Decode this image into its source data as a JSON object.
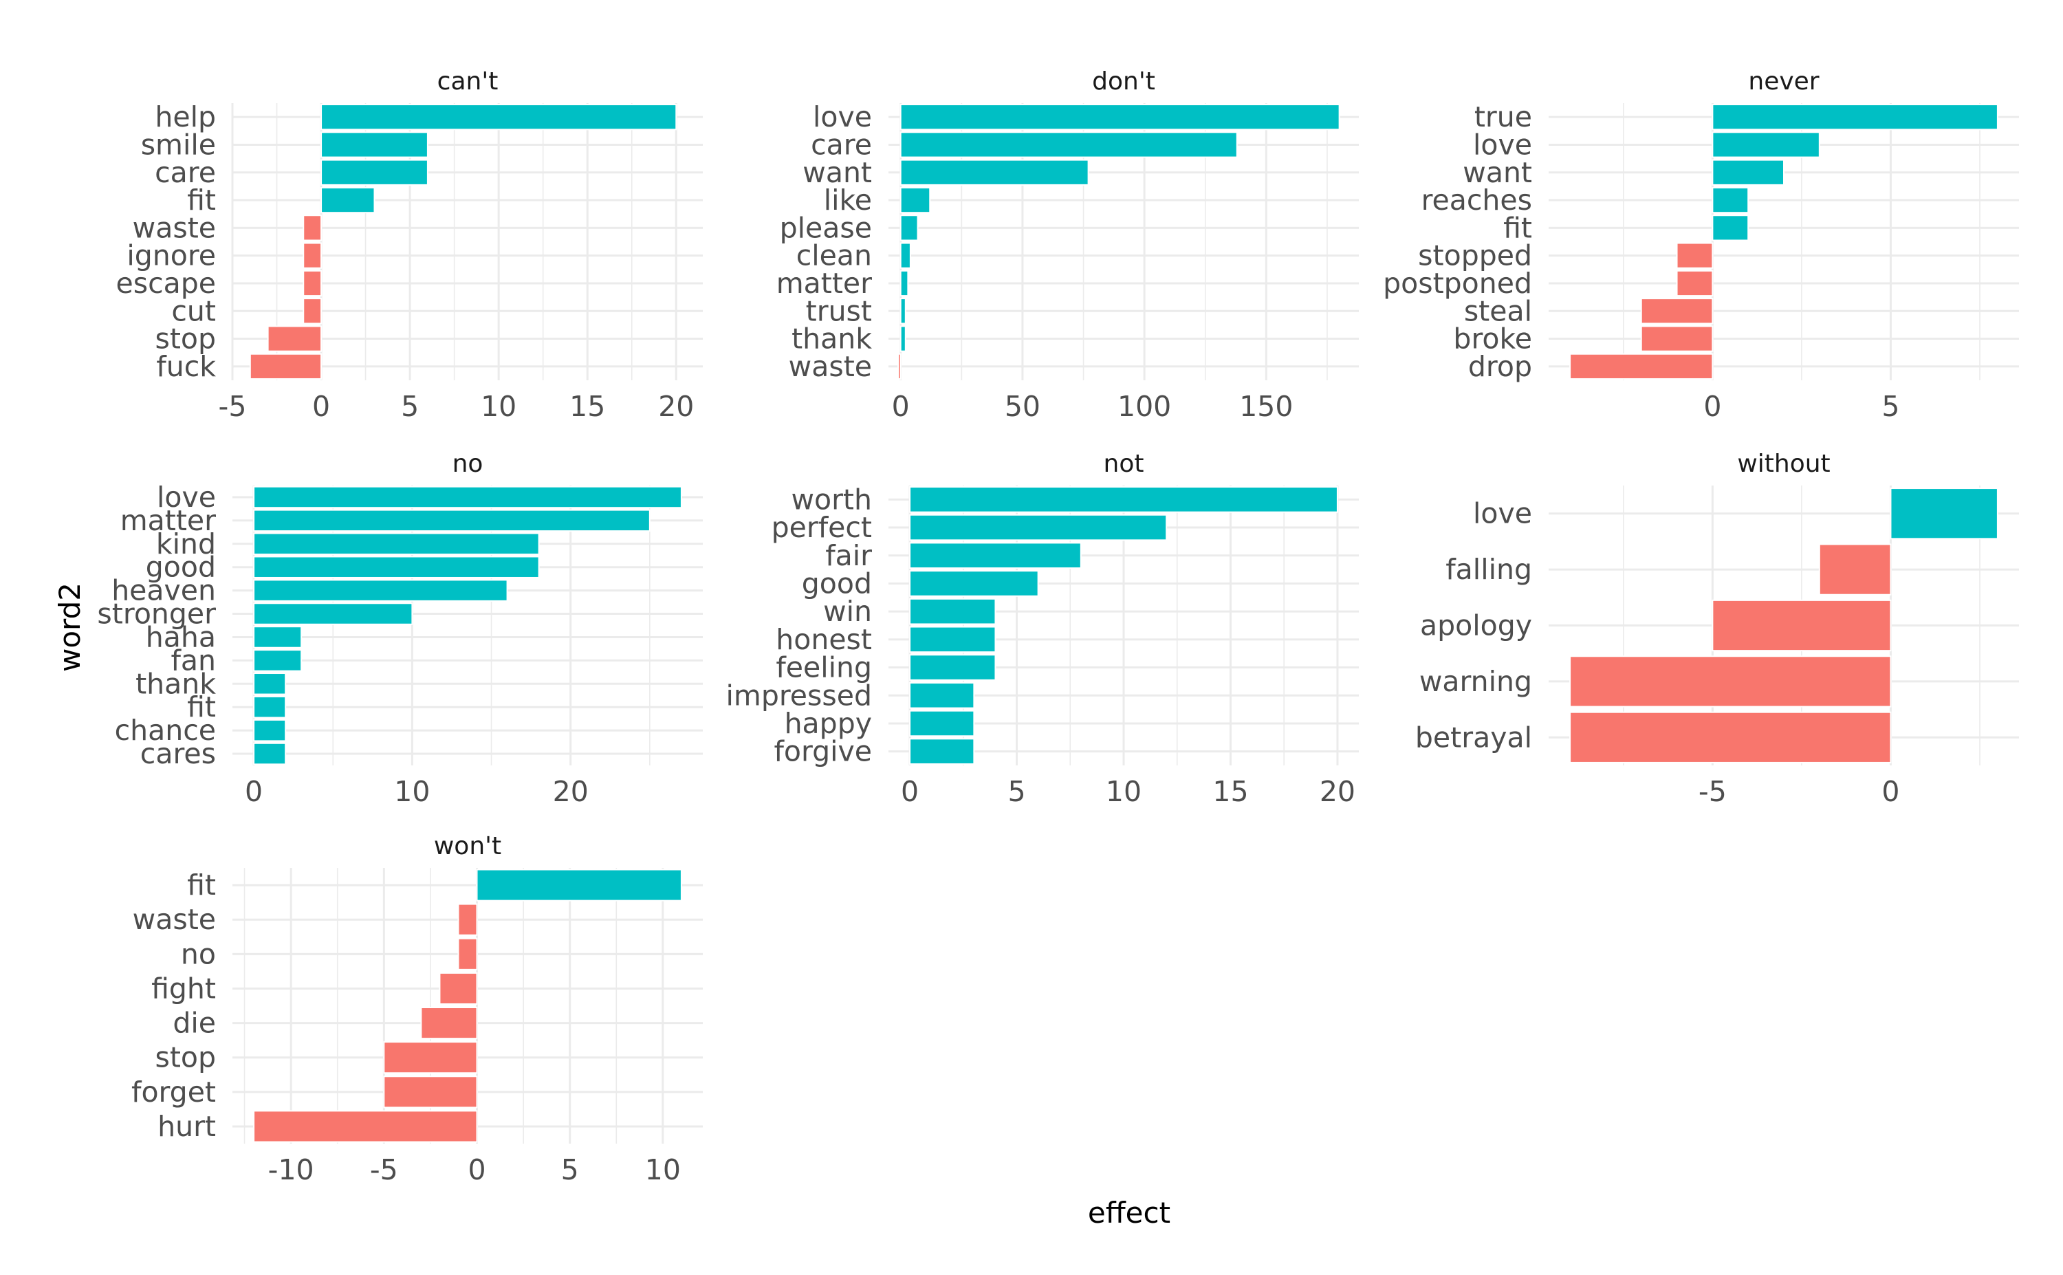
{
  "chart_data": {
    "type": "bar",
    "orientation": "horizontal",
    "xlabel": "effect",
    "ylabel": "word2",
    "colors": {
      "positive": "#00BFC4",
      "negative": "#F8766D"
    },
    "grid": true,
    "facets": [
      {
        "title": "can't",
        "categories": [
          "help",
          "smile",
          "care",
          "fit",
          "waste",
          "ignore",
          "escape",
          "cut",
          "stop",
          "fuck"
        ],
        "values": [
          20,
          6,
          6,
          3,
          -1,
          -1,
          -1,
          -1,
          -3,
          -4
        ],
        "xlim": [
          -5,
          21.5
        ],
        "ticks": [
          -5,
          0,
          5,
          10,
          15,
          20
        ]
      },
      {
        "title": "don't",
        "categories": [
          "love",
          "care",
          "want",
          "like",
          "please",
          "clean",
          "matter",
          "trust",
          "thank",
          "waste"
        ],
        "values": [
          180,
          138,
          77,
          12,
          7,
          4,
          3,
          2,
          2,
          -1
        ],
        "xlim": [
          -5,
          188
        ],
        "ticks": [
          0,
          50,
          100,
          150
        ]
      },
      {
        "title": "never",
        "categories": [
          "true",
          "love",
          "want",
          "reaches",
          "fit",
          "stopped",
          "postponed",
          "steal",
          "broke",
          "drop"
        ],
        "values": [
          8,
          3,
          2,
          1,
          1,
          -1,
          -1,
          -2,
          -2,
          -4
        ],
        "xlim": [
          -4.6,
          8.6
        ],
        "ticks": [
          0,
          5
        ]
      },
      {
        "title": "no",
        "categories": [
          "love",
          "matter",
          "kind",
          "good",
          "heaven",
          "stronger",
          "haha",
          "fan",
          "thank",
          "fit",
          "chance",
          "cares"
        ],
        "values": [
          27,
          25,
          18,
          18,
          16,
          10,
          3,
          3,
          2,
          2,
          2,
          2
        ],
        "xlim": [
          -1.35,
          28.35
        ],
        "ticks": [
          0,
          10,
          20
        ]
      },
      {
        "title": "not",
        "categories": [
          "worth",
          "perfect",
          "fair",
          "good",
          "win",
          "honest",
          "feeling",
          "impressed",
          "happy",
          "forgive"
        ],
        "values": [
          20,
          12,
          8,
          6,
          4,
          4,
          4,
          3,
          3,
          3
        ],
        "xlim": [
          -1,
          21
        ],
        "ticks": [
          0,
          5,
          10,
          15,
          20
        ]
      },
      {
        "title": "without",
        "categories": [
          "love",
          "falling",
          "apology",
          "warning",
          "betrayal"
        ],
        "values": [
          3,
          -2,
          -5,
          -9,
          -9
        ],
        "xlim": [
          -9.6,
          3.6
        ],
        "ticks": [
          -5,
          0
        ]
      },
      {
        "title": "won't",
        "categories": [
          "fit",
          "waste",
          "no",
          "fight",
          "die",
          "stop",
          "forget",
          "hurt"
        ],
        "values": [
          11,
          -1,
          -1,
          -2,
          -3,
          -5,
          -5,
          -12
        ],
        "xlim": [
          -13.15,
          12.15
        ],
        "ticks": [
          -10,
          -5,
          0,
          5,
          10
        ]
      }
    ]
  }
}
